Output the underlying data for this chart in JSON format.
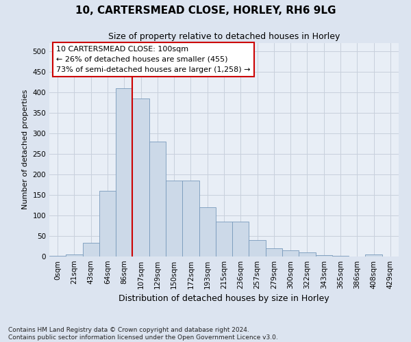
{
  "title1": "10, CARTERSMEAD CLOSE, HORLEY, RH6 9LG",
  "title2": "Size of property relative to detached houses in Horley",
  "xlabel": "Distribution of detached houses by size in Horley",
  "ylabel": "Number of detached properties",
  "footnote": "Contains HM Land Registry data © Crown copyright and database right 2024.\nContains public sector information licensed under the Open Government Licence v3.0.",
  "bar_labels": [
    "0sqm",
    "21sqm",
    "43sqm",
    "64sqm",
    "86sqm",
    "107sqm",
    "129sqm",
    "150sqm",
    "172sqm",
    "193sqm",
    "215sqm",
    "236sqm",
    "257sqm",
    "279sqm",
    "300sqm",
    "322sqm",
    "343sqm",
    "365sqm",
    "386sqm",
    "408sqm",
    "429sqm"
  ],
  "bar_values": [
    2,
    5,
    33,
    160,
    410,
    385,
    280,
    185,
    185,
    120,
    85,
    85,
    40,
    20,
    15,
    10,
    3,
    1,
    0,
    5,
    0
  ],
  "bar_color": "#ccd9e8",
  "bar_edge_color": "#7799bb",
  "vline_bar_index": 4,
  "vline_color": "#cc0000",
  "annotation_text": "10 CARTERSMEAD CLOSE: 100sqm\n← 26% of detached houses are smaller (455)\n73% of semi-detached houses are larger (1,258) →",
  "annotation_box_facecolor": "#ffffff",
  "annotation_box_edgecolor": "#cc0000",
  "ylim": [
    0,
    520
  ],
  "yticks": [
    0,
    50,
    100,
    150,
    200,
    250,
    300,
    350,
    400,
    450,
    500
  ],
  "bg_color": "#dce4f0",
  "plot_bg_color": "#e8eef6",
  "grid_color": "#c8d0dc",
  "title1_fontsize": 11,
  "title2_fontsize": 9,
  "ylabel_fontsize": 8,
  "xlabel_fontsize": 9,
  "tick_fontsize": 7.5,
  "footnote_fontsize": 6.5
}
